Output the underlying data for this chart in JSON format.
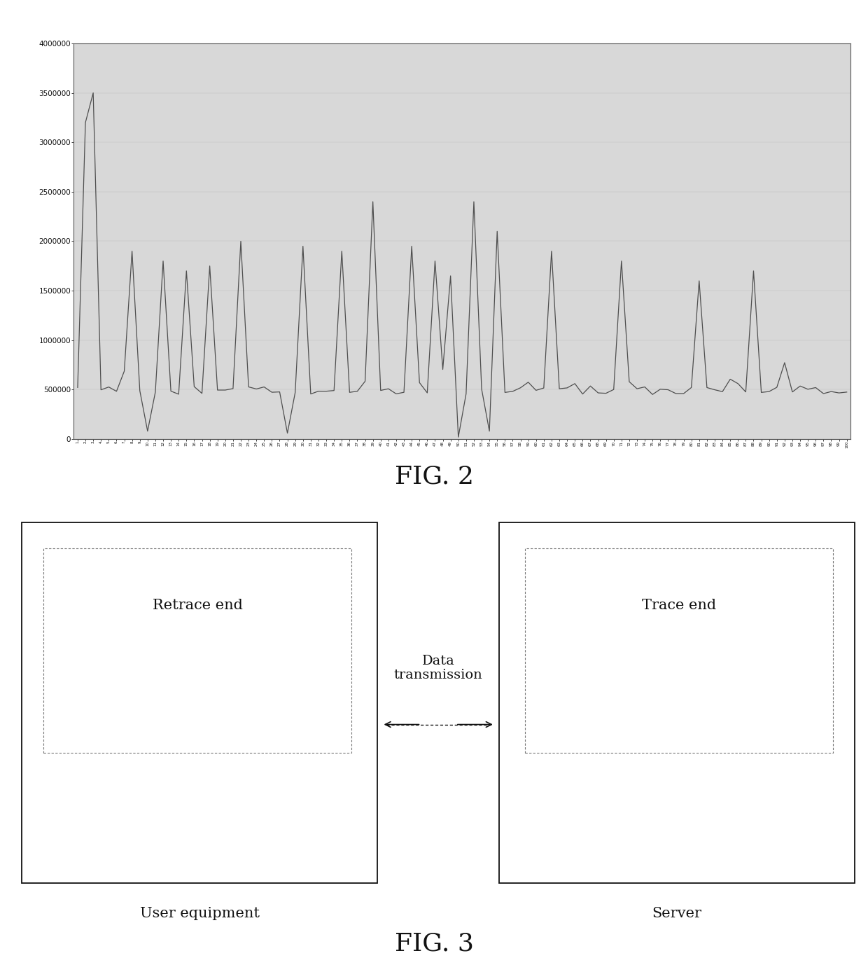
{
  "fig2_title": "FIG. 2",
  "fig3_title": "FIG. 3",
  "yticks": [
    0,
    500000,
    1000000,
    1500000,
    2000000,
    2500000,
    3000000,
    3500000,
    4000000
  ],
  "ytick_labels": [
    "0",
    "500000",
    "1000000",
    "1500000",
    "2000000",
    "2500000",
    "3000000",
    "3500000",
    "4000000"
  ],
  "ylim": [
    0,
    4000000
  ],
  "page_bg": "#ffffff",
  "chart_bg": "#d8d8d8",
  "line_color": "#404040",
  "spikes": {
    "1": 3200000,
    "2": 3500000,
    "7": 1900000,
    "11": 1800000,
    "14": 1700000,
    "17": 1750000,
    "21": 2000000,
    "29": 1950000,
    "34": 1900000,
    "38": 2400000,
    "43": 1950000,
    "46": 1800000,
    "48": 1650000,
    "51": 2400000,
    "54": 2100000,
    "61": 1900000,
    "70": 1800000,
    "80": 1600000,
    "87": 1700000
  },
  "dips": {
    "9": 80000,
    "27": 60000,
    "49": 20000,
    "53": 80000
  },
  "base_signal": 450000,
  "noise_scale": 60000,
  "retrace_end_text": "Retrace end",
  "trace_end_text": "Trace end",
  "user_equipment_text": "User equipment",
  "server_text": "Server",
  "data_transmission_text": "Data\ntransmission"
}
